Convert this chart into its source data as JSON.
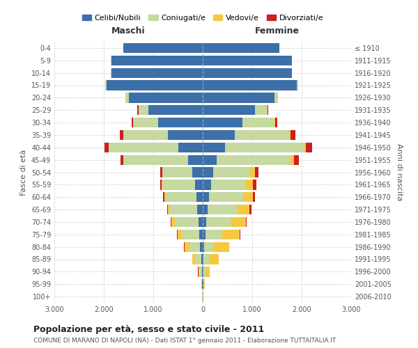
{
  "age_groups": [
    "0-4",
    "5-9",
    "10-14",
    "15-19",
    "20-24",
    "25-29",
    "30-34",
    "35-39",
    "40-44",
    "45-49",
    "50-54",
    "55-59",
    "60-64",
    "65-69",
    "70-74",
    "75-79",
    "80-84",
    "85-89",
    "90-94",
    "95-99",
    "100+"
  ],
  "birth_years": [
    "2006-2010",
    "2001-2005",
    "1996-2000",
    "1991-1995",
    "1986-1990",
    "1981-1985",
    "1976-1980",
    "1971-1975",
    "1966-1970",
    "1961-1965",
    "1956-1960",
    "1951-1955",
    "1946-1950",
    "1941-1945",
    "1936-1940",
    "1931-1935",
    "1926-1930",
    "1921-1925",
    "1916-1920",
    "1911-1915",
    "≤ 1910"
  ],
  "maschi": {
    "celibe": [
      1600,
      1850,
      1850,
      1950,
      1500,
      1100,
      900,
      700,
      500,
      300,
      210,
      160,
      130,
      110,
      90,
      70,
      50,
      30,
      20,
      10,
      5
    ],
    "coniugato": [
      3,
      5,
      5,
      20,
      60,
      200,
      500,
      900,
      1400,
      1300,
      600,
      650,
      620,
      560,
      480,
      360,
      220,
      120,
      50,
      15,
      5
    ],
    "vedovo": [
      0,
      0,
      0,
      1,
      1,
      2,
      2,
      3,
      5,
      8,
      10,
      15,
      20,
      30,
      60,
      80,
      100,
      60,
      20,
      5,
      2
    ],
    "divorziato": [
      0,
      1,
      1,
      2,
      5,
      15,
      30,
      80,
      80,
      50,
      40,
      35,
      30,
      25,
      20,
      15,
      10,
      5,
      3,
      2,
      1
    ]
  },
  "femmine": {
    "nubile": [
      1550,
      1800,
      1800,
      1900,
      1450,
      1050,
      800,
      650,
      450,
      280,
      210,
      170,
      130,
      100,
      70,
      50,
      30,
      20,
      15,
      10,
      5
    ],
    "coniugata": [
      3,
      5,
      5,
      25,
      70,
      250,
      650,
      1100,
      1600,
      1500,
      750,
      700,
      680,
      600,
      500,
      350,
      200,
      100,
      40,
      10,
      5
    ],
    "vedova": [
      0,
      1,
      1,
      2,
      3,
      5,
      10,
      20,
      40,
      60,
      100,
      150,
      200,
      250,
      300,
      350,
      300,
      200,
      80,
      20,
      5
    ],
    "divorziata": [
      0,
      1,
      1,
      2,
      5,
      20,
      50,
      100,
      120,
      100,
      70,
      60,
      50,
      30,
      20,
      15,
      10,
      5,
      3,
      2,
      1
    ]
  },
  "colors": {
    "celibe": "#3d6fa8",
    "coniugato": "#c5d9a0",
    "vedovo": "#f5c842",
    "divorziato": "#cc1f1f"
  },
  "xlim": 3000,
  "title": "Popolazione per età, sesso e stato civile - 2011",
  "subtitle": "COMUNE DI MARANO DI NAPOLI (NA) - Dati ISTAT 1° gennaio 2011 - Elaborazione TUTTAITALIA.IT",
  "xlabel_left": "Maschi",
  "xlabel_right": "Femmine",
  "ylabel_left": "Fasce di età",
  "ylabel_right": "Anni di nascita",
  "legend_labels": [
    "Celibi/Nubili",
    "Coniugati/e",
    "Vedovi/e",
    "Divorziati/e"
  ]
}
